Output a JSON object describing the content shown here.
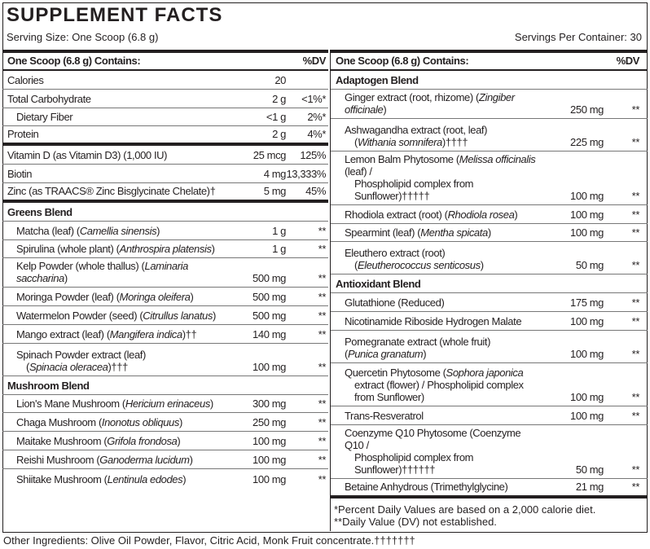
{
  "title": "SUPPLEMENT FACTS",
  "serving_size": "Serving Size: One Scoop (6.8 g)",
  "servings_per_container": "Servings Per Container: 30",
  "left": {
    "header": {
      "label": "One Scoop (6.8 g) Contains:",
      "dv": "%DV"
    },
    "rows": [
      {
        "lines": [
          [
            {
              "t": "Calories"
            }
          ]
        ],
        "amt": "20",
        "dv": ""
      },
      {
        "lines": [
          [
            {
              "t": "Total Carbohydrate"
            }
          ]
        ],
        "amt": "2 g",
        "dv": "<1%*"
      },
      {
        "lines": [
          [
            {
              "t": "Dietary Fiber"
            }
          ]
        ],
        "amt": "<1 g",
        "dv": "2%*",
        "indent": true
      },
      {
        "lines": [
          [
            {
              "t": "Protein"
            }
          ]
        ],
        "amt": "2 g",
        "dv": "4%*",
        "thick": true
      },
      {
        "lines": [
          [
            {
              "t": "Vitamin D (as Vitamin D3) (1,000 IU)"
            }
          ]
        ],
        "amt": "25 mcg",
        "dv": "125%"
      },
      {
        "lines": [
          [
            {
              "t": "Biotin"
            }
          ]
        ],
        "amt": "4 mg",
        "dv": "13,333%"
      },
      {
        "lines": [
          [
            {
              "t": "Zinc (as TRAACS® Zinc Bisglycinate Chelate)†"
            }
          ]
        ],
        "amt": "5 mg",
        "dv": "45%",
        "thick": true
      },
      {
        "section": true,
        "lines": [
          [
            {
              "t": "Greens Blend"
            }
          ]
        ]
      },
      {
        "indent": true,
        "lines": [
          [
            {
              "t": "Matcha (leaf) ("
            },
            {
              "t": "Camellia sinensis",
              "i": true
            },
            {
              "t": ")"
            }
          ]
        ],
        "amt": "1 g",
        "dv": "**"
      },
      {
        "indent": true,
        "lines": [
          [
            {
              "t": "Spirulina (whole plant) ("
            },
            {
              "t": "Anthrospira platensis",
              "i": true
            },
            {
              "t": ")"
            }
          ]
        ],
        "amt": "1 g",
        "dv": "**"
      },
      {
        "indent": true,
        "lines": [
          [
            {
              "t": "Kelp Powder (whole thallus) ("
            },
            {
              "t": "Laminaria saccharina",
              "i": true
            },
            {
              "t": ")"
            }
          ]
        ],
        "amt": "500 mg",
        "dv": "**"
      },
      {
        "indent": true,
        "lines": [
          [
            {
              "t": "Moringa Powder (leaf) ("
            },
            {
              "t": "Moringa oleifera",
              "i": true
            },
            {
              "t": ")"
            }
          ]
        ],
        "amt": "500 mg",
        "dv": "**"
      },
      {
        "indent": true,
        "lines": [
          [
            {
              "t": "Watermelon Powder (seed) ("
            },
            {
              "t": "Citrullus lanatus",
              "i": true
            },
            {
              "t": ")"
            }
          ]
        ],
        "amt": "500 mg",
        "dv": "**"
      },
      {
        "indent": true,
        "lines": [
          [
            {
              "t": "Mango extract (leaf) ("
            },
            {
              "t": "Mangifera indica",
              "i": true
            },
            {
              "t": ")††"
            }
          ]
        ],
        "amt": "140 mg",
        "dv": "**"
      },
      {
        "indent": true,
        "lines": [
          [
            {
              "t": "Spinach Powder extract (leaf)"
            }
          ],
          [
            {
              "t": "("
            },
            {
              "t": "Spinacia oleracea",
              "i": true
            },
            {
              "t": ")†††"
            }
          ]
        ],
        "amt": "100 mg",
        "dv": "**"
      },
      {
        "section": true,
        "lines": [
          [
            {
              "t": "Mushroom Blend"
            }
          ]
        ]
      },
      {
        "indent": true,
        "lines": [
          [
            {
              "t": "Lion's Mane Mushroom ("
            },
            {
              "t": "Hericium erinaceus",
              "i": true
            },
            {
              "t": ")"
            }
          ]
        ],
        "amt": "300 mg",
        "dv": "**"
      },
      {
        "indent": true,
        "lines": [
          [
            {
              "t": "Chaga Mushroom ("
            },
            {
              "t": "Inonotus obliquus",
              "i": true
            },
            {
              "t": ")"
            }
          ]
        ],
        "amt": "250 mg",
        "dv": "**"
      },
      {
        "indent": true,
        "lines": [
          [
            {
              "t": "Maitake Mushroom ("
            },
            {
              "t": "Grifola frondosa",
              "i": true
            },
            {
              "t": ")"
            }
          ]
        ],
        "amt": "100 mg",
        "dv": "**"
      },
      {
        "indent": true,
        "lines": [
          [
            {
              "t": "Reishi Mushroom ("
            },
            {
              "t": "Ganoderma lucidum",
              "i": true
            },
            {
              "t": ")"
            }
          ]
        ],
        "amt": "100 mg",
        "dv": "**"
      },
      {
        "indent": true,
        "last": true,
        "lines": [
          [
            {
              "t": "Shiitake Mushroom ("
            },
            {
              "t": "Lentinula edodes",
              "i": true
            },
            {
              "t": ")"
            }
          ]
        ],
        "amt": "100 mg",
        "dv": "**"
      }
    ]
  },
  "right": {
    "header": {
      "label": "One Scoop (6.8 g) Contains:",
      "dv": "%DV"
    },
    "rows": [
      {
        "section": true,
        "lines": [
          [
            {
              "t": "Adaptogen Blend"
            }
          ]
        ]
      },
      {
        "indent": true,
        "lines": [
          [
            {
              "t": "Ginger extract (root, rhizome) ("
            },
            {
              "t": "Zingiber officinale",
              "i": true
            },
            {
              "t": ")"
            }
          ]
        ],
        "amt": "250 mg",
        "dv": "**"
      },
      {
        "indent": true,
        "lines": [
          [
            {
              "t": "Ashwagandha extract (root, leaf)"
            }
          ],
          [
            {
              "t": "("
            },
            {
              "t": "Withania somnifera",
              "i": true
            },
            {
              "t": ")††††"
            }
          ]
        ],
        "amt": "225 mg",
        "dv": "**"
      },
      {
        "indent": true,
        "lines": [
          [
            {
              "t": "Lemon Balm Phytosome ("
            },
            {
              "t": "Melissa officinalis",
              "i": true
            },
            {
              "t": " (leaf) /"
            }
          ],
          [
            {
              "t": "Phospholipid complex from Sunflower)†††††"
            }
          ]
        ],
        "amt": "100 mg",
        "dv": "**"
      },
      {
        "indent": true,
        "lines": [
          [
            {
              "t": "Rhodiola extract (root) ("
            },
            {
              "t": "Rhodiola rosea",
              "i": true
            },
            {
              "t": ")"
            }
          ]
        ],
        "amt": "100 mg",
        "dv": "**"
      },
      {
        "indent": true,
        "lines": [
          [
            {
              "t": "Spearmint (leaf) ("
            },
            {
              "t": "Mentha spicata",
              "i": true
            },
            {
              "t": ")"
            }
          ]
        ],
        "amt": "100 mg",
        "dv": "**"
      },
      {
        "indent": true,
        "lines": [
          [
            {
              "t": "Eleuthero extract (root)"
            }
          ],
          [
            {
              "t": "("
            },
            {
              "t": "Eleutherococcus senticosus",
              "i": true
            },
            {
              "t": ")"
            }
          ]
        ],
        "amt": "50 mg",
        "dv": "**"
      },
      {
        "section": true,
        "lines": [
          [
            {
              "t": "Antioxidant Blend"
            }
          ]
        ]
      },
      {
        "indent": true,
        "lines": [
          [
            {
              "t": "Glutathione (Reduced)"
            }
          ]
        ],
        "amt": "175 mg",
        "dv": "**"
      },
      {
        "indent": true,
        "lines": [
          [
            {
              "t": "Nicotinamide Riboside Hydrogen Malate"
            }
          ]
        ],
        "amt": "100 mg",
        "dv": "**"
      },
      {
        "indent": true,
        "lines": [
          [
            {
              "t": "Pomegranate extract (whole fruit)"
            }
          ],
          [
            {
              "t": "("
            },
            {
              "t": "Punica granatum",
              "i": true
            },
            {
              "t": ")"
            }
          ]
        ],
        "amt": "100 mg",
        "dv": "**",
        "flat": true
      },
      {
        "indent": true,
        "lines": [
          [
            {
              "t": "Quercetin Phytosome ("
            },
            {
              "t": "Sophora japonica",
              "i": true
            }
          ],
          [
            {
              "t": "extract (flower) / Phospholipid complex"
            }
          ],
          [
            {
              "t": "from Sunflower)"
            }
          ]
        ],
        "amt": "100 mg",
        "dv": "**"
      },
      {
        "indent": true,
        "lines": [
          [
            {
              "t": "Trans-Resveratrol"
            }
          ]
        ],
        "amt": "100 mg",
        "dv": "**"
      },
      {
        "indent": true,
        "lines": [
          [
            {
              "t": "Coenzyme Q10 Phytosome (Coenzyme Q10 /"
            }
          ],
          [
            {
              "t": "Phospholipid complex from Sunflower)††††††"
            }
          ]
        ],
        "amt": "50 mg",
        "dv": "**"
      },
      {
        "indent": true,
        "thick": true,
        "lines": [
          [
            {
              "t": "Betaine Anhydrous (Trimethylglycine)"
            }
          ]
        ],
        "amt": "21 mg",
        "dv": "**"
      }
    ],
    "footnotes": [
      "*Percent Daily Values are based on a 2,000 calorie diet.",
      "**Daily Value (DV) not established."
    ]
  },
  "other_ingredients": "Other Ingredients: Olive Oil Powder, Flavor, Citric Acid, Monk Fruit concentrate.†††††††"
}
